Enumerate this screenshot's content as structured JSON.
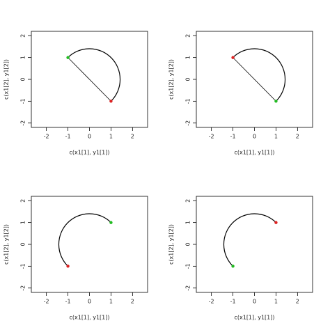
{
  "chart_data": [
    {
      "type": "scatter",
      "xlabel": "c(x1[1], y1[1])",
      "ylabel": "c(x1[2], y1[2])",
      "x": [
        -1,
        1
      ],
      "y": [
        1,
        -1
      ],
      "colors": [
        "#22bb22",
        "#dd2222"
      ],
      "xlim": [
        -2.7,
        2.7
      ],
      "ylim": [
        -2.2,
        2.2
      ],
      "xticks": [
        -2,
        -1,
        0,
        1,
        2
      ],
      "yticks": [
        -2,
        -1,
        0,
        1,
        2
      ],
      "segment": true,
      "arc": true
    },
    {
      "type": "scatter",
      "xlabel": "c(x1[1], y1[1])",
      "ylabel": "c(x1[2], y1[2])",
      "x": [
        -1,
        1
      ],
      "y": [
        1,
        -1
      ],
      "colors": [
        "#dd2222",
        "#22bb22"
      ],
      "xlim": [
        -2.7,
        2.7
      ],
      "ylim": [
        -2.2,
        2.2
      ],
      "xticks": [
        -2,
        -1,
        0,
        1,
        2
      ],
      "yticks": [
        -2,
        -1,
        0,
        1,
        2
      ],
      "segment": true,
      "arc": true
    },
    {
      "type": "scatter",
      "xlabel": "c(x1[1], y1[1])",
      "ylabel": "c(x1[2], y1[2])",
      "x": [
        -1,
        1
      ],
      "y": [
        -1,
        1
      ],
      "colors": [
        "#dd2222",
        "#22bb22"
      ],
      "xlim": [
        -2.7,
        2.7
      ],
      "ylim": [
        -2.2,
        2.2
      ],
      "xticks": [
        -2,
        -1,
        0,
        1,
        2
      ],
      "yticks": [
        -2,
        -1,
        0,
        1,
        2
      ],
      "segment": false,
      "arc": true
    },
    {
      "type": "scatter",
      "xlabel": "c(x1[1], y1[1])",
      "ylabel": "c(x1[2], y1[2])",
      "x": [
        -1,
        1
      ],
      "y": [
        -1,
        1
      ],
      "colors": [
        "#22bb22",
        "#dd2222"
      ],
      "xlim": [
        -2.7,
        2.7
      ],
      "ylim": [
        -2.2,
        2.2
      ],
      "xticks": [
        -2,
        -1,
        0,
        1,
        2
      ],
      "yticks": [
        -2,
        -1,
        0,
        1,
        2
      ],
      "segment": false,
      "arc": true
    }
  ]
}
